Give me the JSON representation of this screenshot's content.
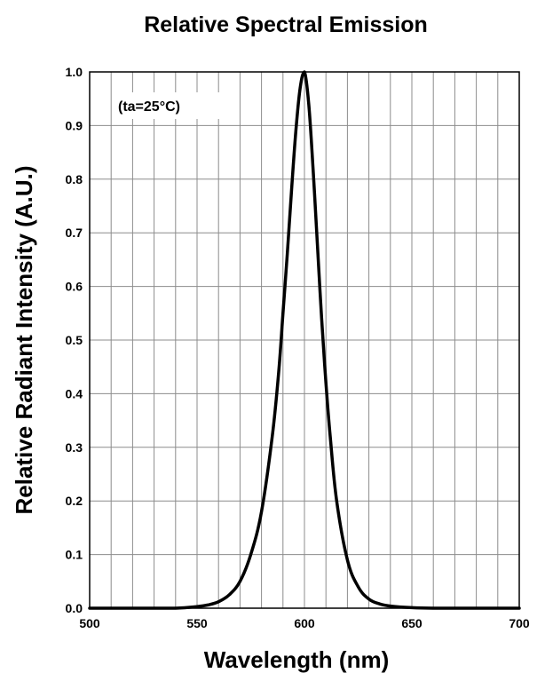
{
  "chart_data": {
    "type": "line",
    "title": "Relative Spectral Emission",
    "xlabel": "Wavelength (nm)",
    "ylabel": "Relative Radiant Intensity (A.U.)",
    "annotation": "(ta=25°C)",
    "xlim": [
      500,
      700
    ],
    "ylim": [
      0,
      1.0
    ],
    "grid": true,
    "x_minor_step": 10,
    "y_minor_step": 0.1,
    "x_ticks": [
      500,
      550,
      600,
      650,
      700
    ],
    "x_tick_labels": [
      "500",
      "550",
      "600",
      "650",
      "700"
    ],
    "y_ticks": [
      0.0,
      0.1,
      0.2,
      0.3,
      0.4,
      0.5,
      0.6,
      0.7,
      0.8,
      0.9,
      1.0
    ],
    "y_tick_labels": [
      "0.0",
      "0.1",
      "0.2",
      "0.3",
      "0.4",
      "0.5",
      "0.6",
      "0.7",
      "0.8",
      "0.9",
      "1.0"
    ],
    "line_color": "#000000",
    "grid_color": "#8c8c8c",
    "series": [
      {
        "x": [
          500,
          520,
          540,
          550,
          555,
          560,
          565,
          570,
          575,
          580,
          585,
          588,
          590,
          592,
          594,
          596,
          598,
          600,
          602,
          604,
          606,
          608,
          610,
          612,
          615,
          620,
          625,
          630,
          635,
          640,
          650,
          660,
          680,
          700
        ],
        "y": [
          0.0,
          0.0,
          0.0,
          0.003,
          0.006,
          0.012,
          0.025,
          0.05,
          0.1,
          0.18,
          0.32,
          0.44,
          0.55,
          0.66,
          0.78,
          0.89,
          0.97,
          1.0,
          0.94,
          0.82,
          0.68,
          0.54,
          0.42,
          0.32,
          0.2,
          0.09,
          0.04,
          0.017,
          0.008,
          0.004,
          0.001,
          0.0,
          0.0,
          0.0
        ]
      }
    ]
  }
}
